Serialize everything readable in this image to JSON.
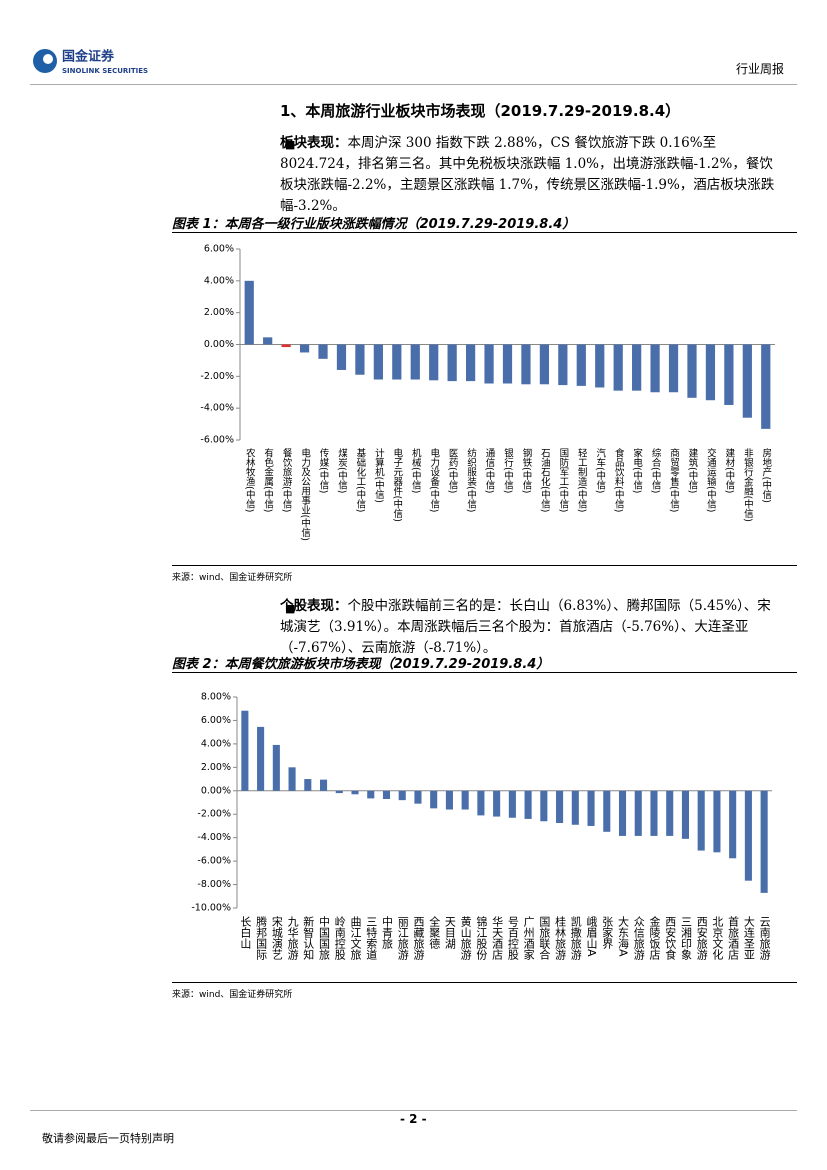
{
  "header": {
    "logo_name": "国金证券",
    "logo_sub": "SINOLINK SECURITIES",
    "report_type": "行业周报"
  },
  "section_title": "1、本周旅游行业板块市场表现（2019.7.29-2019.8.4）",
  "paragraphs": [
    {
      "label": "板块表现：",
      "text": "本周沪深 300 指数下跌 2.88%，CS 餐饮旅游下跌 0.16%至8024.724，排名第三名。其中免税板块涨跌幅 1.0%，出境游涨跌幅-1.2%，餐饮板块涨跌幅-2.2%，主题景区涨跌幅 1.7%，传统景区涨跌幅-1.9%，酒店板块涨跌幅-3.2%。"
    },
    {
      "label": "个股表现：",
      "text": "个股中涨跌幅前三名的是：长白山（6.83%）、腾邦国际（5.45%）、宋城演艺（3.91%）。本周涨跌幅后三名个股为：首旅酒店（-5.76%）、大连圣亚（-7.67%）、云南旅游（-8.71%）。"
    }
  ],
  "sources": [
    "来源：wind、国金证券研究所",
    "来源：wind、国金证券研究所"
  ],
  "footer": {
    "page": "- 2 -",
    "notice": "敬请参阅最后一页特别声明"
  },
  "chart_data": [
    {
      "type": "bar",
      "title": "图表 1：本周各一级行业版块涨跌幅情况（2019.7.29-2019.8.4）",
      "categories": [
        "农林牧渔(中信)",
        "有色金属(中信)",
        "餐饮旅游(中信)",
        "电力及公用事业(中信)",
        "传媒(中信)",
        "煤炭(中信)",
        "基础化工(中信)",
        "计算机(中信)",
        "电子元器件(中信)",
        "机械(中信)",
        "电力设备(中信)",
        "医药(中信)",
        "纺织服装(中信)",
        "通信(中信)",
        "银行(中信)",
        "钢铁(中信)",
        "石油石化(中信)",
        "国防军工(中信)",
        "轻工制造(中信)",
        "汽车(中信)",
        "食品饮料(中信)",
        "家电(中信)",
        "综合(中信)",
        "商贸零售(中信)",
        "建筑(中信)",
        "交通运输(中信)",
        "建材(中信)",
        "非银行金融(中信)",
        "房地产(中信)"
      ],
      "values": [
        4.0,
        0.45,
        -0.16,
        -0.5,
        -0.9,
        -1.6,
        -1.9,
        -2.2,
        -2.2,
        -2.2,
        -2.25,
        -2.3,
        -2.3,
        -2.45,
        -2.45,
        -2.5,
        -2.5,
        -2.55,
        -2.6,
        -2.7,
        -2.9,
        -2.9,
        -3.0,
        -3.0,
        -3.35,
        -3.5,
        -3.8,
        -4.6,
        -5.3
      ],
      "colors": [
        "#4a6ea9",
        "#4a6ea9",
        "#e03030",
        "#4a6ea9",
        "#4a6ea9",
        "#4a6ea9",
        "#4a6ea9",
        "#4a6ea9",
        "#4a6ea9",
        "#4a6ea9",
        "#4a6ea9",
        "#4a6ea9",
        "#4a6ea9",
        "#4a6ea9",
        "#4a6ea9",
        "#4a6ea9",
        "#4a6ea9",
        "#4a6ea9",
        "#4a6ea9",
        "#4a6ea9",
        "#4a6ea9",
        "#4a6ea9",
        "#4a6ea9",
        "#4a6ea9",
        "#4a6ea9",
        "#4a6ea9",
        "#4a6ea9",
        "#4a6ea9",
        "#4a6ea9"
      ],
      "ylim": [
        -6,
        6
      ],
      "yticks": [
        {
          "value": -6,
          "label": "-6.00%"
        },
        {
          "value": -4,
          "label": "-4.00%"
        },
        {
          "value": -2,
          "label": "-2.00%"
        },
        {
          "value": 0,
          "label": "0.00%"
        },
        {
          "value": 2,
          "label": "2.00%"
        },
        {
          "value": 4,
          "label": "4.00%"
        },
        {
          "value": 6,
          "label": "6.00%"
        }
      ]
    },
    {
      "type": "bar",
      "title": "图表 2：本周餐饮旅游板块市场表现（2019.7.29-2019.8.4）",
      "categories": [
        "长白山",
        "腾邦国际",
        "宋城演艺",
        "九华旅游",
        "新智认知",
        "中国国旅",
        "岭南控股",
        "曲江文旅",
        "三特索道",
        "中青旅",
        "丽江旅游",
        "西藏旅游",
        "全聚德",
        "天目湖",
        "黄山旅游",
        "锦江股份",
        "华天酒店",
        "号百控股",
        "广州酒家",
        "国旅联合",
        "桂林旅游",
        "凯撒旅游",
        "峨眉山A",
        "张家界",
        "大东海A",
        "众信旅游",
        "金陵饭店",
        "西安饮食",
        "三湘印象",
        "西安旅游",
        "北京文化",
        "首旅酒店",
        "大连圣亚",
        "云南旅游"
      ],
      "values": [
        6.83,
        5.45,
        3.91,
        2.0,
        1.0,
        0.95,
        -0.2,
        -0.3,
        -0.65,
        -0.7,
        -0.8,
        -1.1,
        -1.5,
        -1.6,
        -1.6,
        -2.1,
        -2.2,
        -2.3,
        -2.4,
        -2.6,
        -2.75,
        -2.9,
        -3.0,
        -3.5,
        -3.85,
        -3.85,
        -3.85,
        -3.85,
        -4.1,
        -5.1,
        -5.25,
        -5.76,
        -7.67,
        -8.71
      ],
      "color": "#4a6ea9",
      "ylim": [
        -10,
        8
      ],
      "yticks": [
        {
          "value": -10,
          "label": "-10.00%"
        },
        {
          "value": -8,
          "label": "-8.00%"
        },
        {
          "value": -6,
          "label": "-6.00%"
        },
        {
          "value": -4,
          "label": "-4.00%"
        },
        {
          "value": -2,
          "label": "-2.00%"
        },
        {
          "value": 0,
          "label": "0.00%"
        },
        {
          "value": 2,
          "label": "2.00%"
        },
        {
          "value": 4,
          "label": "4.00%"
        },
        {
          "value": 6,
          "label": "6.00%"
        },
        {
          "value": 8,
          "label": "8.00%"
        }
      ]
    }
  ]
}
